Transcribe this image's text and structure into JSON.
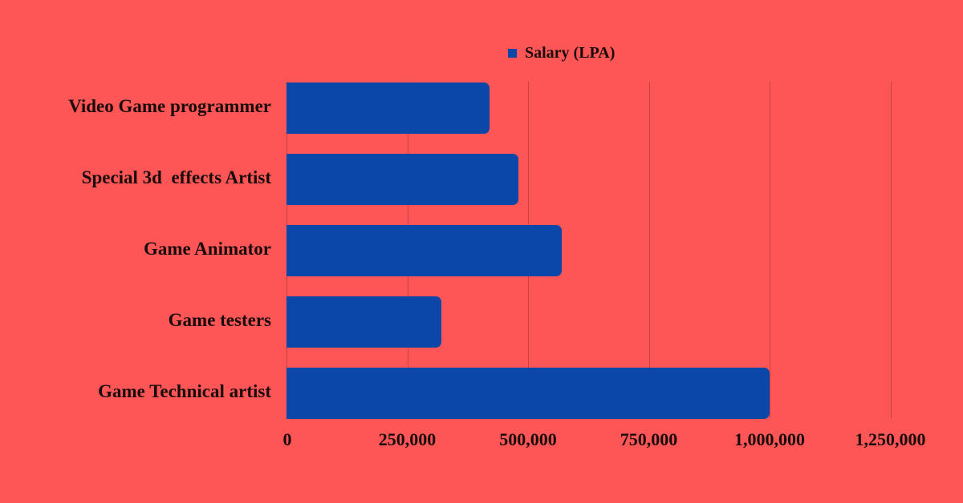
{
  "legend": {
    "label": "Salary (LPA)",
    "color": "#0b47a8"
  },
  "colors": {
    "background": "#fe5656",
    "bar": "#0b47a8",
    "grid": "#c8403f",
    "text": "#1a0b0b"
  },
  "axis": {
    "ticks": [
      "0",
      "250,000",
      "500,000",
      "750,000",
      "1,000,000",
      "1,250,000"
    ]
  },
  "categories": [
    "Video Game programmer",
    "Special 3d  effects Artist",
    "Game Animator",
    "Game testers",
    "Game Technical artist"
  ],
  "chart_data": {
    "type": "bar",
    "orientation": "horizontal",
    "title": "",
    "categories": [
      "Video Game programmer",
      "Special 3d  effects Artist",
      "Game Animator",
      "Game testers",
      "Game Technical artist"
    ],
    "series": [
      {
        "name": "Salary (LPA)",
        "values": [
          420000,
          480000,
          570000,
          320000,
          1000000
        ]
      }
    ],
    "xlabel": "",
    "ylabel": "",
    "xlim": [
      0,
      1350000
    ],
    "xticks": [
      0,
      250000,
      500000,
      750000,
      1000000,
      1250000
    ],
    "grid": true,
    "legend_position": "top"
  }
}
